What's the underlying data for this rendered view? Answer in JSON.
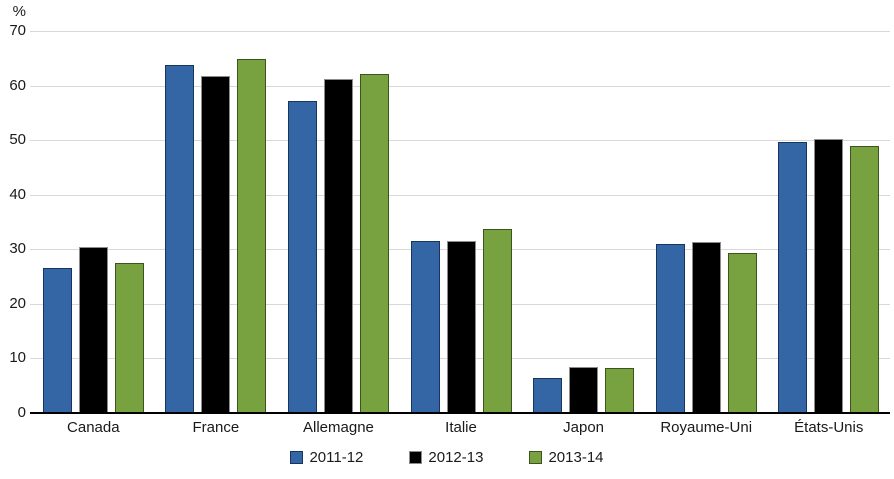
{
  "chart_data": {
    "type": "bar",
    "title": "",
    "ylabel": "%",
    "xlabel": "",
    "categories": [
      "Canada",
      "France",
      "Allemagne",
      "Italie",
      "Japon",
      "Royaume-Uni",
      "États-Unis"
    ],
    "series": [
      {
        "name": "2011-12",
        "color": "#3465a4",
        "border_color": "#17365d",
        "values": [
          26.6,
          63.8,
          57.2,
          31.6,
          6.5,
          30.9,
          49.7
        ]
      },
      {
        "name": "2012-13",
        "color": "#000000",
        "border_color": "#8c8c8c",
        "values": [
          30.4,
          61.8,
          61.2,
          31.5,
          8.4,
          31.3,
          50.2
        ]
      },
      {
        "name": "2013-14",
        "color": "#77a23f",
        "border_color": "#3e541f",
        "values": [
          27.4,
          64.8,
          62.2,
          33.7,
          8.3,
          29.4,
          48.9
        ]
      }
    ],
    "ylim": [
      0,
      70
    ],
    "ytick_interval": 10,
    "yticks": [
      "0",
      "10",
      "20",
      "30",
      "40",
      "50",
      "60",
      "70"
    ],
    "grid": true,
    "gridline_color": "#d8d8d8",
    "axis_color": "#000000",
    "legend_position": "bottom"
  }
}
